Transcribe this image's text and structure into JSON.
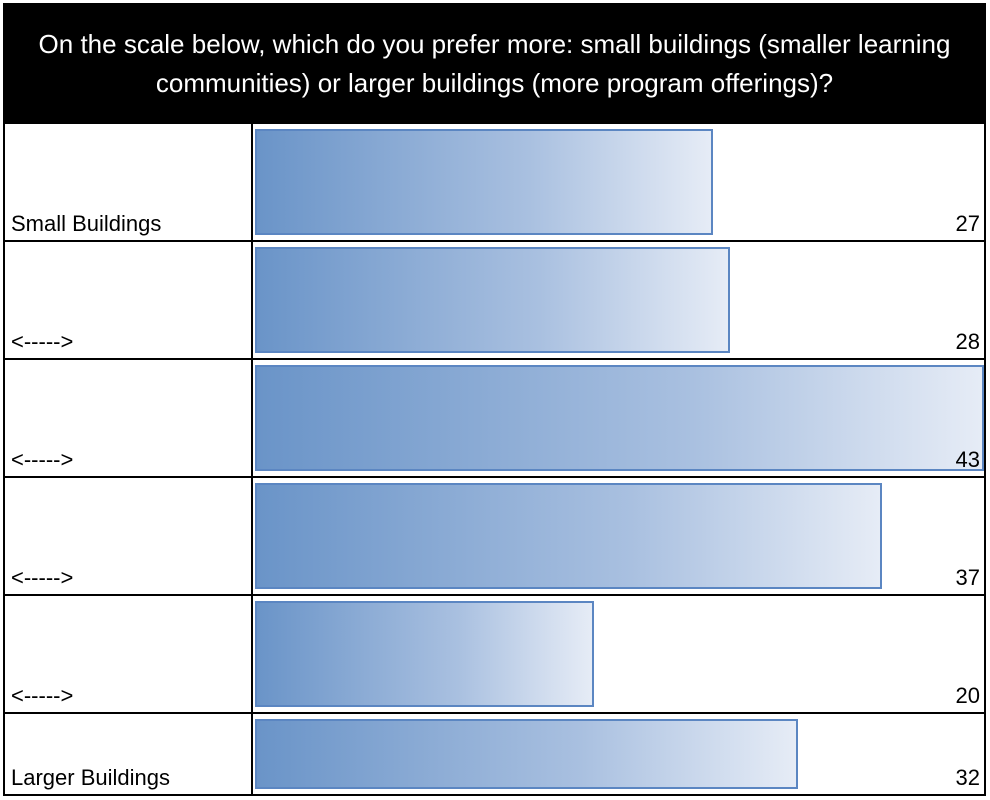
{
  "chart_data": {
    "type": "bar",
    "orientation": "horizontal",
    "title": "On the scale below, which do you prefer more: small buildings (smaller learning communities) or larger buildings (more program offerings)?",
    "categories": [
      "Small Buildings",
      "<----->",
      "<----->",
      "<----->",
      "<----->",
      "Larger Buildings"
    ],
    "values": [
      27,
      28,
      43,
      37,
      20,
      32
    ],
    "xlim": [
      0,
      43
    ],
    "data_labels": [
      "27",
      "28",
      "43",
      "37",
      "20",
      "32"
    ],
    "colors": {
      "bar_start": "#6a94c8",
      "bar_end": "#e6ecf6",
      "bar_border": "#5b86c2",
      "header_bg": "#000000"
    }
  }
}
